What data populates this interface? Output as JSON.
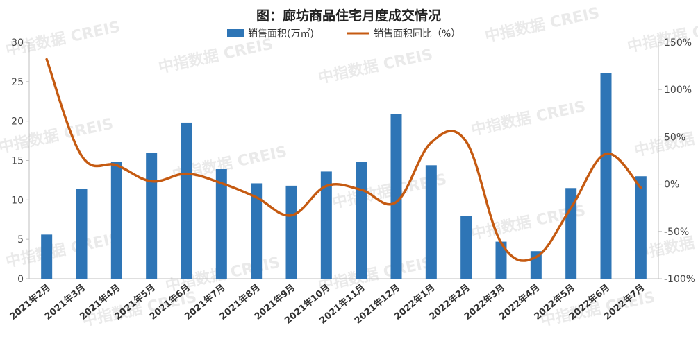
{
  "chart_data": {
    "type": "bar",
    "title": "图：廊坊商品住宅月度成交情况",
    "watermark": "中指数据 CREIS",
    "categories": [
      "2021年2月",
      "2021年3月",
      "2021年4月",
      "2021年5月",
      "2021年6月",
      "2021年7月",
      "2021年8月",
      "2021年9月",
      "2021年10月",
      "2021年11月",
      "2021年12月",
      "2022年1月",
      "2022年2月",
      "2022年3月",
      "2022年4月",
      "2022年5月",
      "2022年6月",
      "2022年7月"
    ],
    "series": [
      {
        "name": "销售面积(万㎡)",
        "type": "bar",
        "axis": "left",
        "color": "#2E75B6",
        "values": [
          5.6,
          11.4,
          14.8,
          16.0,
          19.8,
          13.9,
          12.1,
          11.8,
          13.6,
          14.8,
          20.9,
          14.4,
          8.0,
          4.7,
          3.5,
          11.5,
          26.1,
          13.0
        ]
      },
      {
        "name": "销售面积同比（%）",
        "type": "line",
        "axis": "right",
        "color": "#C55A11",
        "values": [
          132,
          30,
          20,
          3,
          11,
          1,
          -14,
          -33,
          -2,
          -6,
          -19,
          44,
          45,
          -62,
          -77,
          -25,
          32,
          -4
        ]
      }
    ],
    "y_left": {
      "min": 0,
      "max": 30,
      "step": 5,
      "ticks": [
        "0",
        "5",
        "10",
        "15",
        "20",
        "25",
        "30"
      ]
    },
    "y_right": {
      "min": -100,
      "max": 150,
      "step": 50,
      "ticks": [
        "-100%",
        "-50%",
        "0%",
        "50%",
        "100%",
        "150%"
      ]
    },
    "legend": "top-center",
    "grid": false
  }
}
